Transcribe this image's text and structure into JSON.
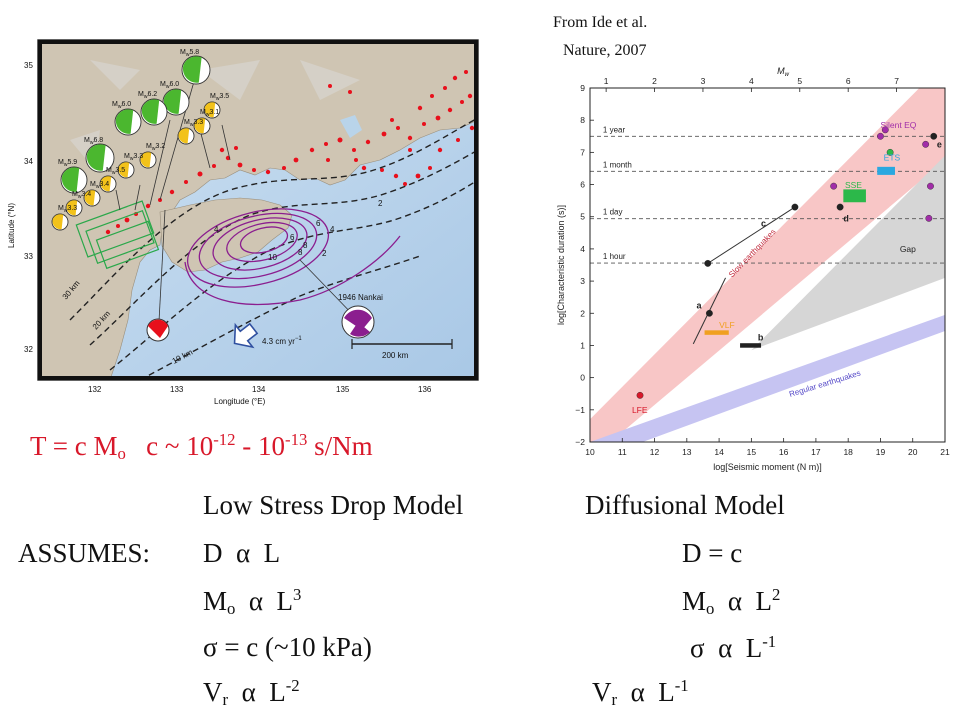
{
  "citation": {
    "line1": "From Ide et al.",
    "line2": "Nature, 2007"
  },
  "map": {
    "y_axis_label": "Latitude (°N)",
    "x_axis_label": "Longitude (°E)",
    "lat_ticks": [
      "35",
      "34",
      "33",
      "32"
    ],
    "lon_ticks": [
      "132",
      "133",
      "134",
      "135",
      "136"
    ],
    "depth_labels": [
      "30 km",
      "20 km",
      "10 km"
    ],
    "contour_labels": [
      "2",
      "4",
      "6",
      "8",
      "10",
      "8",
      "6",
      "4",
      "2"
    ],
    "event_label": "1946 Nankai",
    "plate_rate_prefix": "4.3 cm yr",
    "plate_rate_exp": "−1",
    "scale_label": "200 km",
    "mechanism_labels": [
      {
        "mag": "5.8",
        "color": "#4bb72f"
      },
      {
        "mag": "6.0",
        "color": "#4bb72f"
      },
      {
        "mag": "6.2",
        "color": "#4bb72f"
      },
      {
        "mag": "6.0",
        "color": "#4bb72f"
      },
      {
        "mag": "6.8",
        "color": "#4bb72f"
      },
      {
        "mag": "5.9",
        "color": "#4bb72f"
      },
      {
        "mag": "3.5",
        "color": "#f2c21b"
      },
      {
        "mag": "3.1",
        "color": "#f2c21b"
      },
      {
        "mag": "3.3",
        "color": "#f2c21b"
      },
      {
        "mag": "3.2",
        "color": "#f2c21b"
      },
      {
        "mag": "3.3",
        "color": "#f2c21b"
      },
      {
        "mag": "3.5",
        "color": "#f2c21b"
      },
      {
        "mag": "3.4",
        "color": "#f2c21b"
      },
      {
        "mag": "3.4",
        "color": "#f2c21b"
      },
      {
        "mag": "3.3",
        "color": "#f2c21b"
      }
    ],
    "mw_prefix": "M",
    "mw_sub": "w",
    "colors": {
      "land": "#cfc5b3",
      "sea": "#b9d4ea",
      "tremor": "#e8101c",
      "contour": "#8b1e8f",
      "nankai": "#8b1e8f"
    }
  },
  "equation": {
    "t_part": "T = c M",
    "t_sub": "o",
    "c_part": "c ~ 10",
    "exp1": "-12",
    "dash": " - 10",
    "exp2": "-13",
    "unit": " s/Nm"
  },
  "models": {
    "left_title": "Low Stress Drop Model",
    "right_title": "Diffusional Model",
    "assumes": "ASSUMES:",
    "alpha": "α",
    "sigma": "σ",
    "row1": {
      "l_var": "D",
      "l_rhs": "L",
      "r_text": "D = c"
    },
    "row2": {
      "l_var": "M",
      "l_sub": "o",
      "l_rhs": "L",
      "l_exp": "3",
      "r_var": "M",
      "r_sub": "o",
      "r_rhs": "L",
      "r_exp": "2"
    },
    "row3": {
      "l_text": " = c (~10 kPa)",
      "r_rhs": "L",
      "r_exp": "-1"
    },
    "row4": {
      "l_var": "V",
      "l_sub": "r",
      "l_rhs": "L",
      "l_exp": "-2",
      "r_var": "V",
      "r_sub": "r",
      "r_rhs": "L",
      "r_exp": "-1"
    }
  },
  "chart_data": {
    "type": "scatter",
    "title": "",
    "xlabel": "log[Seismic moment (N m)]",
    "ylabel": "log[Characteristic duration (s)]",
    "top_axis_label": "M",
    "top_axis_sub": "w",
    "xlim": [
      10,
      21
    ],
    "ylim": [
      -2,
      9
    ],
    "x_ticks": [
      "10",
      "11",
      "12",
      "13",
      "14",
      "15",
      "16",
      "17",
      "18",
      "19",
      "20",
      "21"
    ],
    "y_ticks": [
      "−2",
      "−1",
      "0",
      "1",
      "2",
      "3",
      "4",
      "5",
      "6",
      "7",
      "8",
      "9"
    ],
    "top_ticks": [
      "1",
      "2",
      "3",
      "4",
      "5",
      "6",
      "7"
    ],
    "top_tick_positions_log_moment": [
      10.5,
      12,
      13.5,
      15,
      16.5,
      18,
      19.5
    ],
    "time_lines": [
      {
        "label": "1 year",
        "y": 7.5
      },
      {
        "label": "1 month",
        "y": 6.41
      },
      {
        "label": "1 day",
        "y": 4.94
      },
      {
        "label": "1 hour",
        "y": 3.56
      }
    ],
    "bands": [
      {
        "label": "Slow earthquakes",
        "color": "#f6b8b8"
      },
      {
        "label": "Regular earthquakes",
        "color": "#c6c4f2"
      },
      {
        "label": "Gap",
        "color": "#d6d6d6"
      }
    ],
    "category_labels": [
      {
        "label": "Silent EQ",
        "color": "#a12ea8",
        "x": 19.0,
        "y": 7.75
      },
      {
        "label": "ETS",
        "color": "#2aa8e0",
        "x": 19.1,
        "y": 6.75
      },
      {
        "label": "SSE",
        "color": "#2cb84a",
        "x": 17.9,
        "y": 5.9
      },
      {
        "label": "VLF",
        "color": "#f0a020",
        "x": 14.0,
        "y": 1.55
      },
      {
        "label": "LFE",
        "color": "#d8182a",
        "x": 11.3,
        "y": -1.1
      }
    ],
    "points": [
      {
        "x": 11.55,
        "y": -0.55,
        "color": "#d8182a"
      },
      {
        "x": 13.65,
        "y": 3.55,
        "color": "#222222"
      },
      {
        "x": 16.35,
        "y": 5.3,
        "color": "#222222"
      },
      {
        "x": 13.7,
        "y": 2.0,
        "color": "#222222"
      },
      {
        "x": 17.55,
        "y": 5.95,
        "color": "#a12ea8"
      },
      {
        "x": 17.75,
        "y": 5.3,
        "color": "#222222"
      },
      {
        "x": 19.0,
        "y": 7.5,
        "color": "#a12ea8"
      },
      {
        "x": 19.15,
        "y": 7.7,
        "color": "#a12ea8"
      },
      {
        "x": 19.3,
        "y": 7.0,
        "color": "#2cb84a"
      },
      {
        "x": 20.4,
        "y": 7.25,
        "color": "#a12ea8"
      },
      {
        "x": 20.65,
        "y": 7.5,
        "color": "#222222"
      },
      {
        "x": 20.55,
        "y": 5.95,
        "color": "#a12ea8"
      },
      {
        "x": 20.5,
        "y": 4.95,
        "color": "#a12ea8"
      }
    ],
    "point_labels": [
      {
        "label": "a",
        "x": 13.3,
        "y": 2.15
      },
      {
        "label": "b",
        "x": 15.2,
        "y": 1.15
      },
      {
        "label": "c",
        "x": 15.3,
        "y": 4.7
      },
      {
        "label": "d",
        "x": 17.85,
        "y": 4.85
      },
      {
        "label": "e",
        "x": 20.75,
        "y": 7.15
      }
    ],
    "segments": [
      {
        "name": "c",
        "from": [
          13.65,
          3.55
        ],
        "to": [
          16.35,
          5.3
        ]
      },
      {
        "name": "a",
        "from": [
          13.2,
          1.05
        ],
        "to": [
          14.2,
          3.1
        ]
      }
    ],
    "rectangles": [
      {
        "name": "SSE",
        "x0": 17.85,
        "x1": 18.55,
        "y0": 5.45,
        "y1": 5.85,
        "color": "#2cb84a"
      },
      {
        "name": "ETS",
        "x0": 18.9,
        "x1": 19.45,
        "y0": 6.3,
        "y1": 6.55,
        "color": "#2aa8e0"
      },
      {
        "name": "VLF",
        "x0": 13.55,
        "x1": 14.3,
        "y0": 1.33,
        "y1": 1.47,
        "color": "#f0a020"
      },
      {
        "name": "b",
        "x0": 14.65,
        "x1": 15.3,
        "y0": 0.93,
        "y1": 1.07,
        "color": "#222222"
      }
    ]
  }
}
